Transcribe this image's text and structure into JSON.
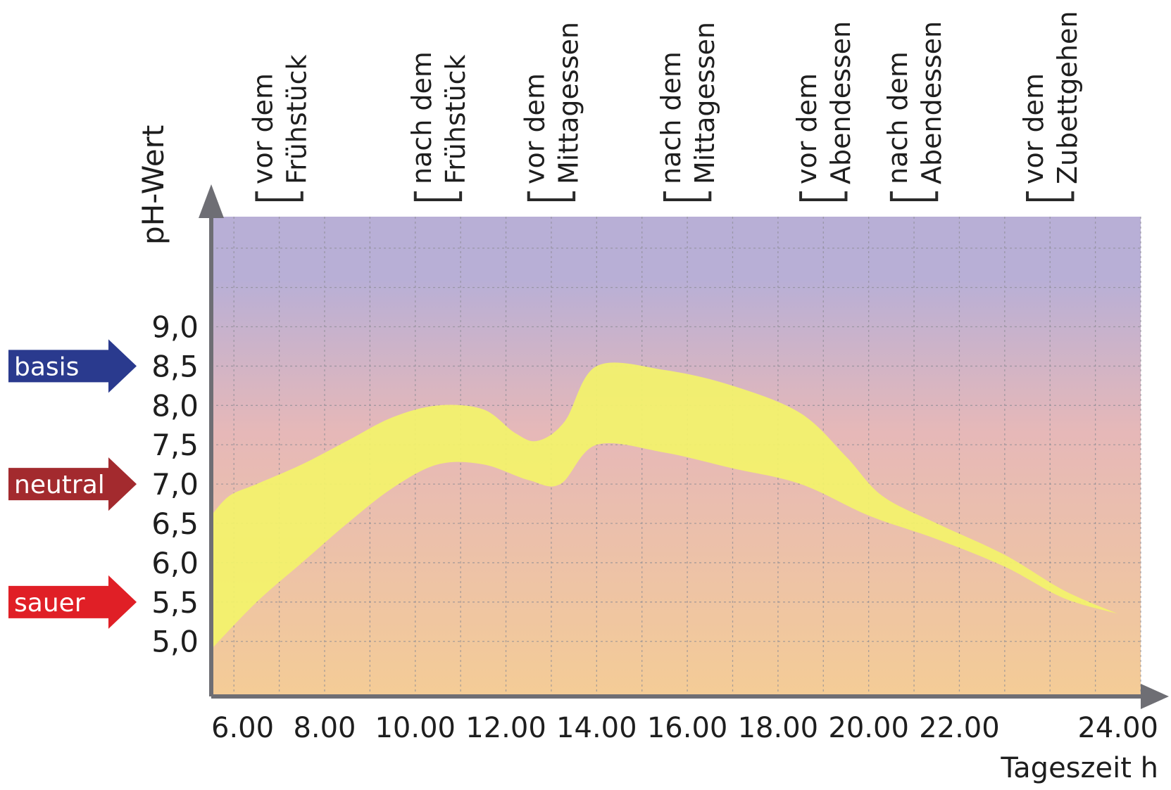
{
  "chart_data": {
    "type": "area",
    "title": "",
    "xlabel": "Tageszeit h",
    "ylabel": "pH-Wert",
    "xlim": [
      5.5,
      26.0
    ],
    "ylim": [
      4.3,
      10.4
    ],
    "x_ticks": [
      {
        "value": 6,
        "label": "6.00"
      },
      {
        "value": 8,
        "label": "8.00"
      },
      {
        "value": 10,
        "label": "10.00"
      },
      {
        "value": 12,
        "label": "12.00"
      },
      {
        "value": 14,
        "label": "14.00"
      },
      {
        "value": 16,
        "label": "16.00"
      },
      {
        "value": 18,
        "label": "18.00"
      },
      {
        "value": 20,
        "label": "20.00"
      },
      {
        "value": 22,
        "label": "22.00"
      },
      {
        "value": 24,
        "label": "24.00"
      }
    ],
    "y_ticks": [
      {
        "value": 5.0,
        "label": "5,0"
      },
      {
        "value": 5.5,
        "label": "5,5"
      },
      {
        "value": 6.0,
        "label": "6,0"
      },
      {
        "value": 6.5,
        "label": "6,5"
      },
      {
        "value": 7.0,
        "label": "7,0"
      },
      {
        "value": 7.5,
        "label": "7,5"
      },
      {
        "value": 8.0,
        "label": "8,0"
      },
      {
        "value": 8.5,
        "label": "8,5"
      },
      {
        "value": 9.0,
        "label": "9,0"
      }
    ],
    "grid": true,
    "grid_x_step": 1,
    "grid_y_step": 0.5,
    "band": {
      "upper": [
        {
          "x": 5.5,
          "y": 6.6
        },
        {
          "x": 5.9,
          "y": 6.85
        },
        {
          "x": 6.5,
          "y": 7.0
        },
        {
          "x": 7.5,
          "y": 7.25
        },
        {
          "x": 8.5,
          "y": 7.55
        },
        {
          "x": 9.5,
          "y": 7.85
        },
        {
          "x": 10.5,
          "y": 8.0
        },
        {
          "x": 11.5,
          "y": 7.95
        },
        {
          "x": 12.2,
          "y": 7.65
        },
        {
          "x": 12.7,
          "y": 7.55
        },
        {
          "x": 13.3,
          "y": 7.8
        },
        {
          "x": 14.0,
          "y": 8.5
        },
        {
          "x": 15.5,
          "y": 8.45
        },
        {
          "x": 17.0,
          "y": 8.25
        },
        {
          "x": 18.5,
          "y": 7.9
        },
        {
          "x": 19.5,
          "y": 7.35
        },
        {
          "x": 20.3,
          "y": 6.85
        },
        {
          "x": 21.5,
          "y": 6.5
        },
        {
          "x": 23.0,
          "y": 6.1
        },
        {
          "x": 24.3,
          "y": 5.65
        },
        {
          "x": 25.5,
          "y": 5.35
        }
      ],
      "lower": [
        {
          "x": 5.5,
          "y": 4.9
        },
        {
          "x": 6.5,
          "y": 5.5
        },
        {
          "x": 7.5,
          "y": 6.0
        },
        {
          "x": 8.5,
          "y": 6.5
        },
        {
          "x": 9.5,
          "y": 6.95
        },
        {
          "x": 10.5,
          "y": 7.25
        },
        {
          "x": 11.5,
          "y": 7.25
        },
        {
          "x": 12.5,
          "y": 7.05
        },
        {
          "x": 13.2,
          "y": 7.0
        },
        {
          "x": 14.0,
          "y": 7.5
        },
        {
          "x": 15.5,
          "y": 7.4
        },
        {
          "x": 17.0,
          "y": 7.2
        },
        {
          "x": 18.5,
          "y": 7.0
        },
        {
          "x": 20.0,
          "y": 6.6
        },
        {
          "x": 21.5,
          "y": 6.3
        },
        {
          "x": 23.0,
          "y": 5.95
        },
        {
          "x": 24.3,
          "y": 5.55
        },
        {
          "x": 25.5,
          "y": 5.35
        }
      ],
      "color": "#f3f36a"
    },
    "meal_markers": [
      {
        "line1": "vor dem",
        "line2": "Frühstück",
        "x_from": 6.5,
        "x_to": 7.5
      },
      {
        "line1": "nach dem",
        "line2": "Frühstück",
        "x_from": 10.0,
        "x_to": 11.0
      },
      {
        "line1": "vor dem",
        "line2": "Mittagessen",
        "x_from": 12.5,
        "x_to": 13.5
      },
      {
        "line1": "nach dem",
        "line2": "Mittagessen",
        "x_from": 15.5,
        "x_to": 16.5
      },
      {
        "line1": "vor dem",
        "line2": "Abendessen",
        "x_from": 18.5,
        "x_to": 19.5
      },
      {
        "line1": "nach dem",
        "line2": "Abendessen",
        "x_from": 20.5,
        "x_to": 21.5
      },
      {
        "line1": "vor dem",
        "line2": "Zubettgehen",
        "x_from": 23.5,
        "x_to": 24.5
      }
    ],
    "zones": [
      {
        "label": "basis",
        "y": 8.5,
        "color": "#2a3a8e"
      },
      {
        "label": "neutral",
        "y": 7.0,
        "color": "#a32a2e"
      },
      {
        "label": "sauer",
        "y": 5.5,
        "color": "#e01f26"
      }
    ],
    "background": {
      "top_color": "#b8afd6",
      "middle_color": "#e6b8b8",
      "bottom_color": "#f4cc96"
    },
    "axis_color": "#6e6e74"
  }
}
